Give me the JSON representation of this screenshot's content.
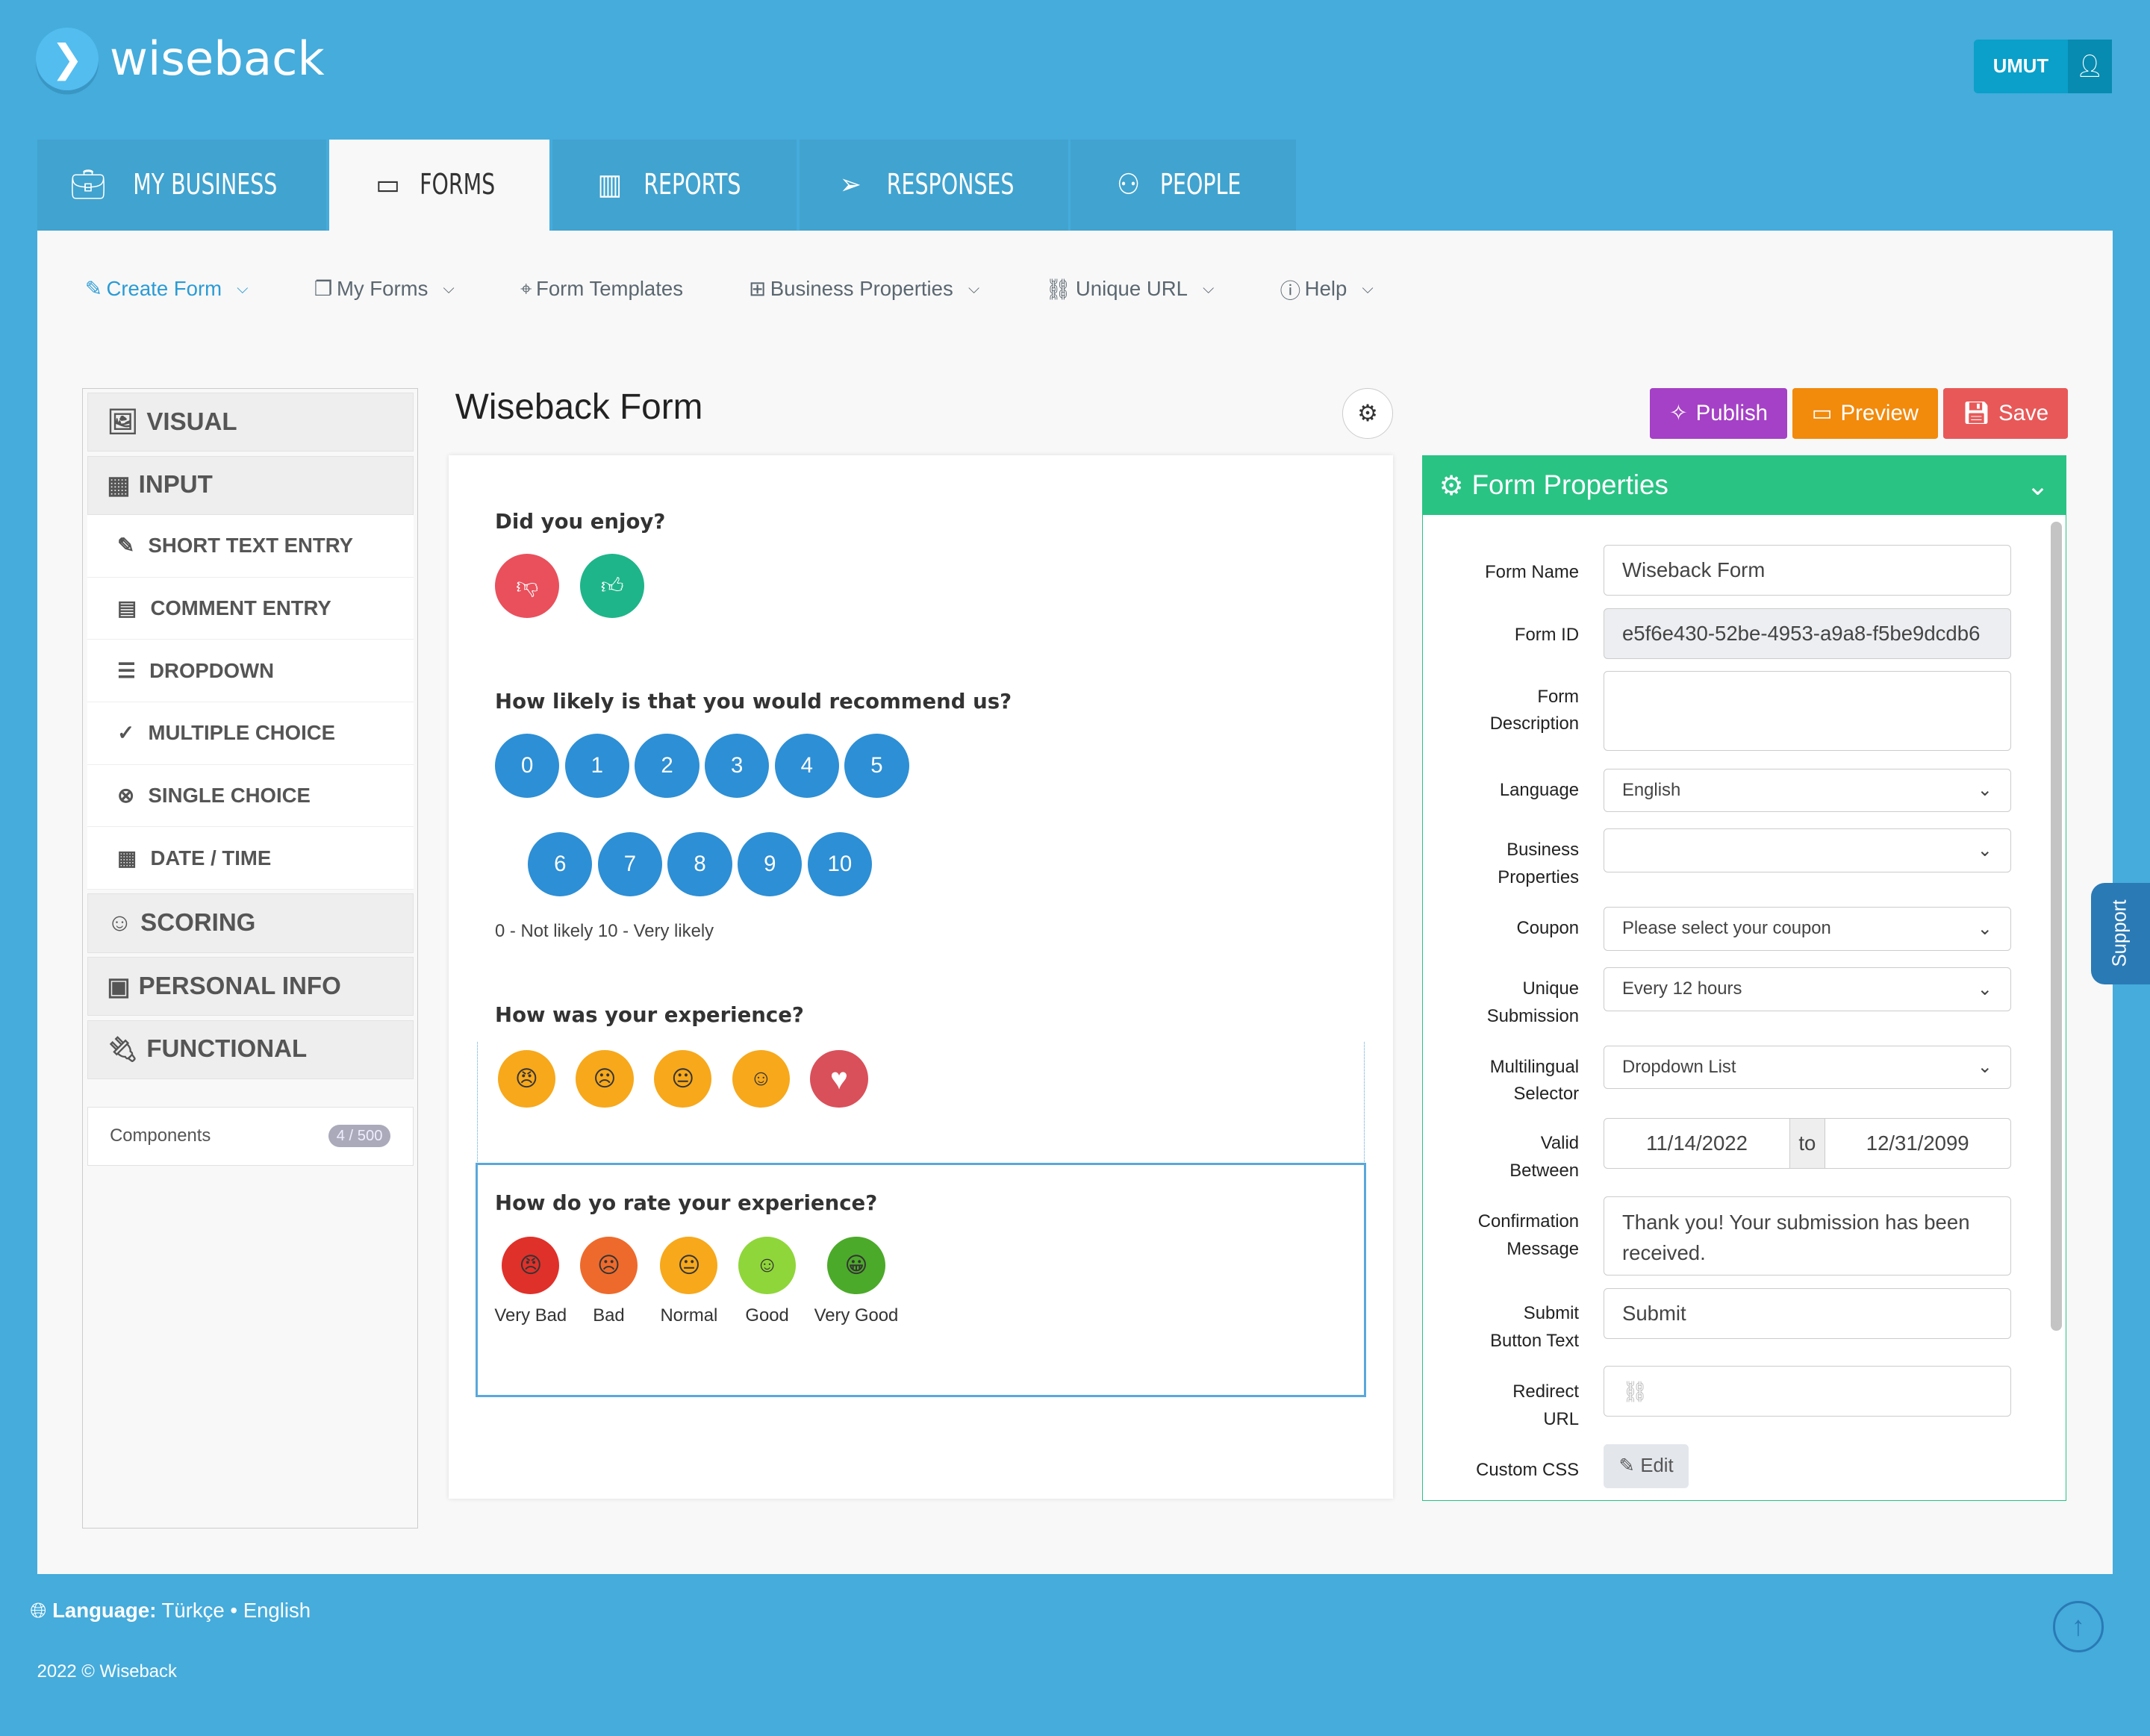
{
  "brand": {
    "name": "wiseback"
  },
  "user": {
    "name": "UMUT"
  },
  "tabs": [
    {
      "label": "MY BUSINESS",
      "icon": "briefcase-icon"
    },
    {
      "label": "FORMS",
      "icon": "comment-icon"
    },
    {
      "label": "REPORTS",
      "icon": "bar-chart-icon"
    },
    {
      "label": "RESPONSES",
      "icon": "paper-plane-icon"
    },
    {
      "label": "PEOPLE",
      "icon": "users-icon"
    }
  ],
  "subnav": [
    {
      "label": "Create Form"
    },
    {
      "label": "My Forms"
    },
    {
      "label": "Form Templates"
    },
    {
      "label": "Business Properties"
    },
    {
      "label": "Unique URL"
    },
    {
      "label": "Help"
    }
  ],
  "sidebar": {
    "groups": {
      "visual": "VISUAL",
      "input": "INPUT",
      "scoring": "SCORING",
      "personal": "PERSONAL INFO",
      "functional": "FUNCTIONAL"
    },
    "items": [
      "SHORT TEXT ENTRY",
      "COMMENT ENTRY",
      "DROPDOWN",
      "MULTIPLE CHOICE",
      "SINGLE CHOICE",
      "DATE / TIME"
    ],
    "components_label": "Components",
    "components_count": "4 / 500"
  },
  "form": {
    "title": "Wiseback Form",
    "q1": "Did you enjoy?",
    "q2": "How likely is that you would recommend us?",
    "scale_row1": [
      "0",
      "1",
      "2",
      "3",
      "4",
      "5"
    ],
    "scale_row2": [
      "6",
      "7",
      "8",
      "9",
      "10"
    ],
    "scale_hint": "0 - Not likely 10 - Very likely",
    "q3": "How was your experience?",
    "q4": "How do yo rate your experience?",
    "ratings": [
      "Very Bad",
      "Bad",
      "Normal",
      "Good",
      "Very Good"
    ]
  },
  "actions": {
    "publish": "Publish",
    "preview": "Preview",
    "save": "Save",
    "publish_color": "#a541c6",
    "preview_color": "#f28a0c",
    "save_color": "#e85858"
  },
  "properties": {
    "title": "Form Properties",
    "form_name_label": "Form Name",
    "form_name": "Wiseback Form",
    "form_id_label": "Form ID",
    "form_id": "e5f6e430-52be-4953-a9a8-f5be9dcdb6",
    "desc_label": "Form Description",
    "language_label": "Language",
    "language": "English",
    "bp_label": "Business Properties",
    "coupon_label": "Coupon",
    "coupon": "Please select your coupon",
    "unique_label": "Unique Submission",
    "unique": "Every 12 hours",
    "multi_label": "Multilingual Selector",
    "multi": "Dropdown List",
    "valid_label": "Valid Between",
    "valid_from": "11/14/2022",
    "valid_to_word": "to",
    "valid_to": "12/31/2099",
    "confirm_label": "Confirmation Message",
    "confirm": "Thank you! Your submission has been received.",
    "submit_label": "Submit Button Text",
    "submit": "Submit",
    "redirect_label": "Redirect URL",
    "css_label": "Custom CSS",
    "css_edit": "Edit"
  },
  "support": "Support",
  "footer": {
    "language_label": "Language:",
    "lang1": "Türkçe",
    "sep": "•",
    "lang2": "English",
    "copyright": "2022 © Wiseback"
  }
}
